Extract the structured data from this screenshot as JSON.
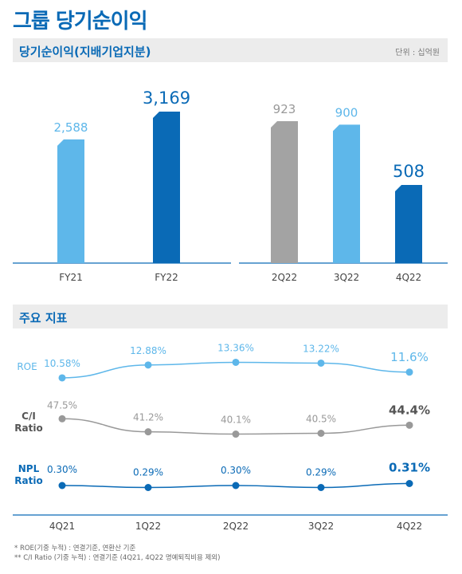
{
  "title": "그룹 당기순이익",
  "section1": {
    "label": "당기순이익(지배기업지분)",
    "unit": "단위 : 십억원"
  },
  "section2": {
    "label": "주요 지표"
  },
  "colors": {
    "light_blue": "#5eb7ea",
    "dark_blue": "#0a6ab6",
    "gray": "#a3a3a3",
    "axis_text": "#444444"
  },
  "chart_data": [
    {
      "type": "bar",
      "panel": "annual",
      "categories": [
        "FY21",
        "FY22"
      ],
      "values": [
        2588,
        3169
      ],
      "labels": [
        "2,588",
        "3,169"
      ],
      "colors": [
        "#5eb7ea",
        "#0a6ab6"
      ]
    },
    {
      "type": "bar",
      "panel": "quarterly",
      "categories": [
        "2Q22",
        "3Q22",
        "4Q22"
      ],
      "values": [
        923,
        900,
        508
      ],
      "labels": [
        "923",
        "900",
        "508"
      ],
      "colors": [
        "#a3a3a3",
        "#5eb7ea",
        "#0a6ab6"
      ]
    },
    {
      "type": "line",
      "categories": [
        "4Q21",
        "1Q22",
        "2Q22",
        "3Q22",
        "4Q22"
      ],
      "series": [
        {
          "name": "ROE",
          "values": [
            10.58,
            12.88,
            13.36,
            13.22,
            11.6
          ],
          "labels": [
            "10.58%",
            "12.88%",
            "13.36%",
            "13.22%",
            "11.6%"
          ],
          "color": "#5eb7ea"
        },
        {
          "name": "C/I Ratio",
          "values": [
            47.5,
            41.2,
            40.1,
            40.5,
            44.4
          ],
          "labels": [
            "47.5%",
            "41.2%",
            "40.1%",
            "40.5%",
            "44.4%"
          ],
          "color": "#999999"
        },
        {
          "name": "NPL Ratio",
          "values": [
            0.3,
            0.29,
            0.3,
            0.29,
            0.31
          ],
          "labels": [
            "0.30%",
            "0.29%",
            "0.30%",
            "0.29%",
            "0.31%"
          ],
          "color": "#0a6ab6"
        }
      ]
    }
  ],
  "notes": [
    "* ROE(기중 누적) : 연결기준, 연환산 기준",
    "** C/I Ratio (기중 누적) : 연결기준 (4Q21, 4Q22 명예퇴직비용 제외)"
  ]
}
